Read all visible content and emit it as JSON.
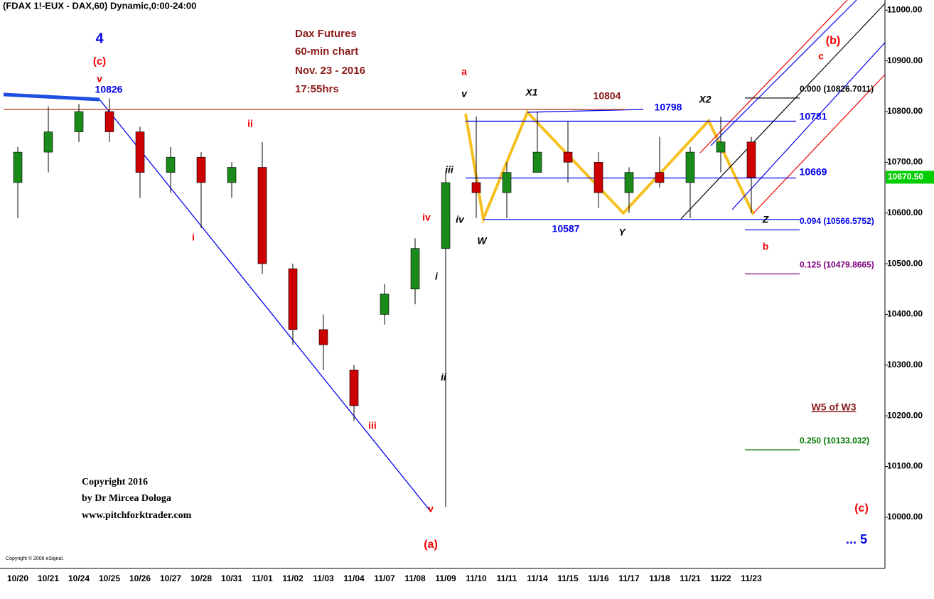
{
  "chart_data": {
    "type": "candlestick",
    "title": "(FDAX 1!-EUX - DAX,60) Dynamic,0:00-24:00",
    "categories": [
      "10/20",
      "10/21",
      "10/24",
      "10/25",
      "10/26",
      "10/27",
      "10/28",
      "10/31",
      "11/01",
      "11/02",
      "11/03",
      "11/04",
      "11/07",
      "11/08",
      "11/09",
      "11/10",
      "11/11",
      "11/14",
      "11/15",
      "11/16",
      "11/17",
      "11/18",
      "11/21",
      "11/22",
      "11/23"
    ],
    "open": [
      10660,
      10720,
      10760,
      10800,
      10760,
      10680,
      10710,
      10660,
      10690,
      10490,
      10370,
      10290,
      10400,
      10450,
      10530,
      10660,
      10640,
      10680,
      10720,
      10700,
      10640,
      10680,
      10660,
      10720,
      10740
    ],
    "high": [
      10730,
      10810,
      10815,
      10826,
      10770,
      10730,
      10720,
      10700,
      10740,
      10500,
      10400,
      10300,
      10460,
      10550,
      10680,
      10790,
      10700,
      10800,
      10780,
      10720,
      10690,
      10750,
      10730,
      10790,
      10750
    ],
    "low": [
      10590,
      10680,
      10740,
      10740,
      10630,
      10640,
      10570,
      10630,
      10480,
      10340,
      10290,
      10190,
      10380,
      10420,
      10020,
      10590,
      10590,
      10680,
      10660,
      10610,
      10600,
      10650,
      10590,
      10680,
      10600
    ],
    "close": [
      10720,
      10760,
      10800,
      10760,
      10680,
      10710,
      10660,
      10690,
      10500,
      10370,
      10340,
      10220,
      10440,
      10530,
      10660,
      10640,
      10680,
      10720,
      10700,
      10640,
      10680,
      10660,
      10720,
      10740,
      10670
    ],
    "up_color": "#1a8a1a",
    "down_color": "#cc0000",
    "ylim": [
      9899,
      11020
    ],
    "yticks": [
      {
        "value": 10000,
        "label": "10000.00"
      },
      {
        "value": 10100,
        "label": "10100.00"
      },
      {
        "value": 10200,
        "label": "10200.00"
      },
      {
        "value": 10300,
        "label": "10300.00"
      },
      {
        "value": 10400,
        "label": "10400.00"
      },
      {
        "value": 10500,
        "label": "10500.00"
      },
      {
        "value": 10600,
        "label": "10600.00"
      },
      {
        "value": 10700,
        "label": "10700.00"
      },
      {
        "value": 10800,
        "label": "10800.00"
      },
      {
        "value": 10900,
        "label": "10900.00"
      },
      {
        "value": 11000,
        "label": "11000.00"
      }
    ],
    "last_price": {
      "value": 10670.5,
      "label": "10670.50"
    },
    "levels": [
      {
        "value": 10804,
        "color": "#b03a1a"
      },
      {
        "value": 10781,
        "color": "#0000ee"
      },
      {
        "value": 10669,
        "color": "#0000ee"
      },
      {
        "value": 10587,
        "color": "#0000ee"
      }
    ],
    "fib_levels": [
      {
        "label": "0.000 (10826.7011)",
        "value": 10826.7011,
        "color": "#000000"
      },
      {
        "label": "0.094 (10566.5752)",
        "value": 10566.5752,
        "color": "#0000ee"
      },
      {
        "label": "0.125 (10479.8665)",
        "value": 10479.8665,
        "color": "#800080"
      },
      {
        "label": "0.250 (10133.032)",
        "value": 10133.032,
        "color": "#007700"
      }
    ],
    "annotations": [
      {
        "text": "Dax Futures",
        "color": "#8b1a1a"
      },
      {
        "text": "60-min chart",
        "color": "#8b1a1a"
      },
      {
        "text": "Nov. 23 -  2016",
        "color": "#8b1a1a"
      },
      {
        "text": "17:55hrs",
        "color": "#8b1a1a"
      },
      {
        "text": "4",
        "color": "#0000ee"
      },
      {
        "text": "(c)",
        "color": "#ee0000"
      },
      {
        "text": "v",
        "color": "#ee0000"
      },
      {
        "text": "10826",
        "color": "#0000ee"
      },
      {
        "text": "ii",
        "color": "#ee0000"
      },
      {
        "text": "i",
        "color": "#ee0000"
      },
      {
        "text": "iii",
        "color": "#ee0000"
      },
      {
        "text": "iv",
        "color": "#ee0000"
      },
      {
        "text": "v",
        "color": "#ee0000"
      },
      {
        "text": "(a)",
        "color": "#ee0000"
      },
      {
        "text": "a",
        "color": "#ee0000"
      },
      {
        "text": "v",
        "color": "#000000"
      },
      {
        "text": "iii",
        "color": "#000000"
      },
      {
        "text": "iv",
        "color": "#000000"
      },
      {
        "text": "i",
        "color": "#000000"
      },
      {
        "text": "ii",
        "color": "#000000"
      },
      {
        "text": "W",
        "color": "#000000"
      },
      {
        "text": "X1",
        "color": "#000000"
      },
      {
        "text": "10804",
        "color": "#8b1a1a"
      },
      {
        "text": "10798",
        "color": "#0000ee"
      },
      {
        "text": "X2",
        "color": "#000000"
      },
      {
        "text": "Y",
        "color": "#000000"
      },
      {
        "text": "10587",
        "color": "#0000ee"
      },
      {
        "text": "Z",
        "color": "#000000"
      },
      {
        "text": "b",
        "color": "#ee0000"
      },
      {
        "text": "10781",
        "color": "#0000ee"
      },
      {
        "text": "10669",
        "color": "#0000ee"
      },
      {
        "text": "(b)",
        "color": "#ee0000"
      },
      {
        "text": "c",
        "color": "#ee0000"
      },
      {
        "text": "W5 of W3",
        "color": "#8b1a1a"
      },
      {
        "text": "(c)",
        "color": "#ee0000"
      },
      {
        "text": "... 5",
        "color": "#0000ee"
      }
    ],
    "copyright": [
      "Copyright 2016",
      "by Dr Mircea Dologa",
      "www.pitchforktrader.com"
    ],
    "source": "Copyright © 2006 eSignal."
  }
}
